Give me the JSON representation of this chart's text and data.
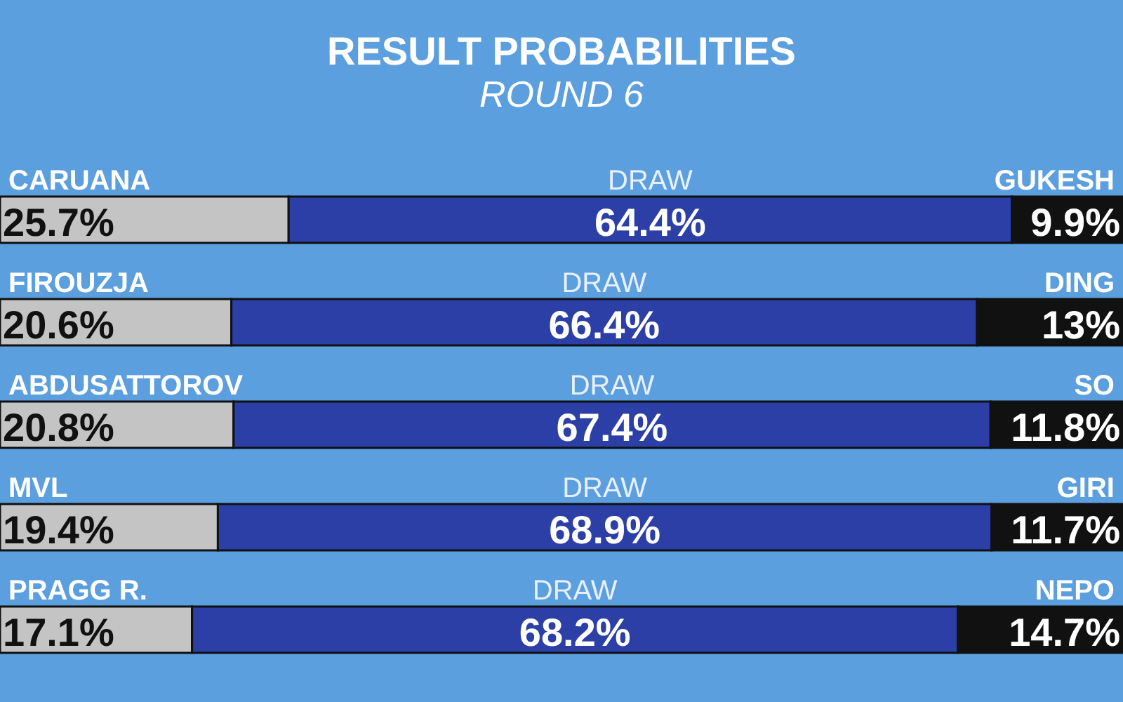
{
  "chart_data": {
    "type": "bar",
    "orientation": "horizontal",
    "stacked": true,
    "title": "RESULT PROBABILITIES",
    "subtitle": "ROUND 6",
    "categories": [
      "CARUANA",
      "FIROUZJA",
      "ABDUSATTOROV",
      "MVL",
      "PRAGG R."
    ],
    "series": [
      {
        "color": "#c4c4c4",
        "values": [
          25.7,
          20.6,
          20.8,
          19.4,
          17.1
        ],
        "value_labels": [
          "25.7%",
          "20.6%",
          "20.8%",
          "19.4%",
          "17.1%"
        ]
      },
      {
        "name": "DRAW",
        "color": "#2b3fa6",
        "values": [
          64.4,
          66.4,
          67.4,
          68.9,
          68.2
        ],
        "value_labels": [
          "64.4%",
          "66.4%",
          "67.4%",
          "68.9%",
          "68.2%"
        ]
      },
      {
        "color": "#111111",
        "values": [
          9.9,
          13,
          11.8,
          11.7,
          14.7
        ],
        "value_labels": [
          "9.9%",
          "13%",
          "11.8%",
          "11.7%",
          "14.7%"
        ]
      }
    ],
    "annotations": [
      "GUKESH",
      "DING",
      "SO",
      "GIRI",
      "NEPO"
    ],
    "xlim": [
      0,
      100
    ],
    "tick_labels": "y",
    "legend": false
  }
}
